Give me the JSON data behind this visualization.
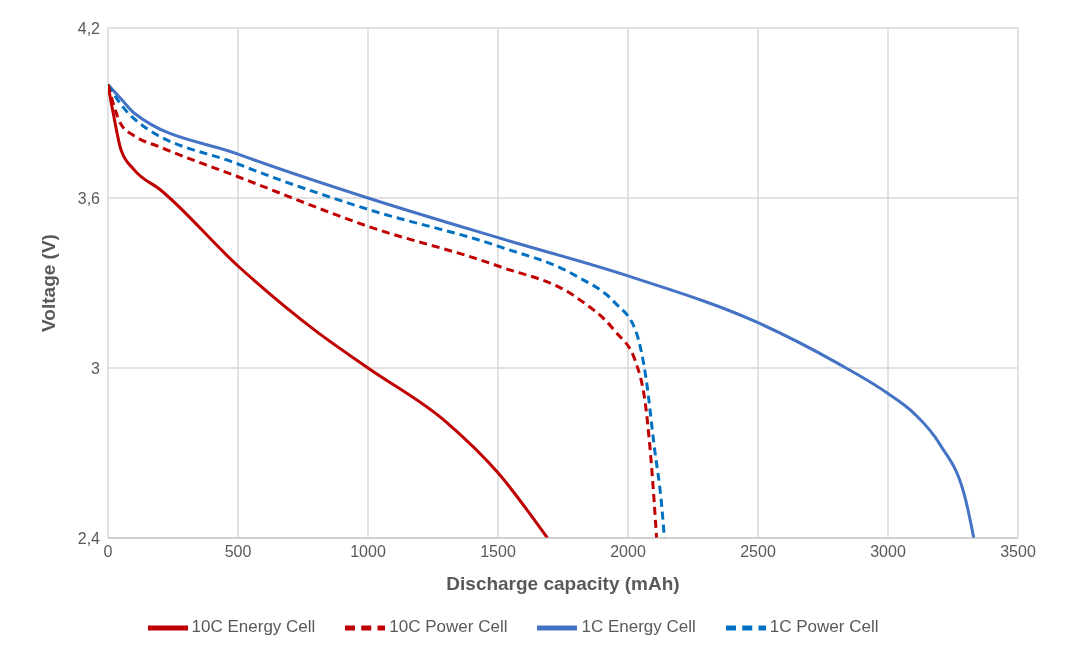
{
  "chart_data": {
    "type": "line",
    "xlabel": "Discharge capacity (mAh)",
    "ylabel": "Voltage (V)",
    "xlim": [
      0,
      3500
    ],
    "xticks": [
      0,
      500,
      1000,
      1500,
      2000,
      2500,
      3000,
      3500
    ],
    "ylim": [
      2.4,
      4.2
    ],
    "yticks": [
      {
        "value": 2.4,
        "label": "2,4"
      },
      3,
      {
        "value": 3.6,
        "label": "3,6"
      },
      {
        "value": 4.2,
        "label": "4,2"
      }
    ],
    "grid": true,
    "legend": "bottom",
    "marker": "none",
    "series": [
      {
        "name": "1C Energy Cell",
        "color": "#4472c4",
        "line_style": "solid",
        "x": [
          0,
          50,
          100,
          500,
          1000,
          1500,
          2000,
          2500,
          2800,
          3000,
          3100,
          3200,
          3300,
          3330
        ],
        "values": [
          4.0,
          3.95,
          3.9,
          3.755,
          3.6,
          3.46,
          3.325,
          3.16,
          3.02,
          2.91,
          2.84,
          2.73,
          2.53,
          2.4
        ]
      },
      {
        "name": "10C Energy Cell",
        "color": "#c00000",
        "line_style": "solid",
        "x": [
          0,
          20,
          50,
          100,
          200,
          500,
          800,
          1000,
          1300,
          1500,
          1690
        ],
        "values": [
          4.0,
          3.9,
          3.77,
          3.7,
          3.63,
          3.36,
          3.13,
          3.0,
          2.81,
          2.63,
          2.4
        ]
      },
      {
        "name": "1C Power Cell",
        "color": "#0070c0",
        "line_style": "dashed",
        "x": [
          0,
          50,
          100,
          500,
          1000,
          1500,
          1800,
          1950,
          2030,
          2070,
          2100,
          2130,
          2140
        ],
        "values": [
          4.0,
          3.93,
          3.88,
          3.72,
          3.56,
          3.43,
          3.325,
          3.23,
          3.13,
          2.96,
          2.73,
          2.51,
          2.4
        ]
      },
      {
        "name": "10C Power Cell",
        "color": "#c00000",
        "line_style": "dashed",
        "x": [
          0,
          50,
          100,
          200,
          500,
          1000,
          1500,
          1800,
          1950,
          2030,
          2070,
          2090,
          2110
        ],
        "values": [
          4.0,
          3.86,
          3.82,
          3.78,
          3.675,
          3.5,
          3.36,
          3.25,
          3.13,
          3.02,
          2.85,
          2.66,
          2.4
        ]
      }
    ]
  }
}
